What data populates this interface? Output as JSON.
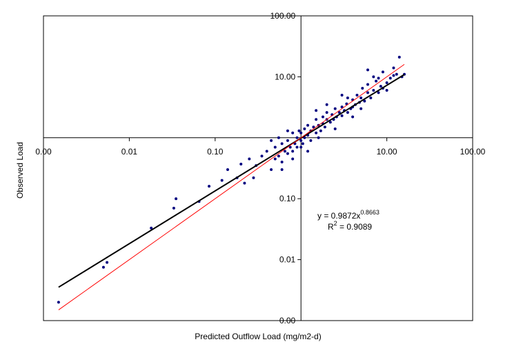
{
  "chart_data": {
    "type": "scatter",
    "x_label": "Predicted Outflow Load  (mg/m2-d)",
    "y_label": "Observed Load",
    "log_x": true,
    "log_y": true,
    "xlim": [
      0.001,
      100
    ],
    "ylim": [
      0.001,
      100
    ],
    "xticks": [
      {
        "value": 0.001,
        "label": "0.00"
      },
      {
        "value": 0.01,
        "label": "0.01"
      },
      {
        "value": 0.1,
        "label": "0.10"
      },
      {
        "value": 10,
        "label": "10.00"
      },
      {
        "value": 100,
        "label": "100.00"
      }
    ],
    "yticks": [
      {
        "value": 0.001,
        "label": "0.00"
      },
      {
        "value": 0.01,
        "label": "0.01"
      },
      {
        "value": 0.1,
        "label": "0.10"
      },
      {
        "value": 10,
        "label": "10.00"
      },
      {
        "value": 100,
        "label": "100.00"
      }
    ],
    "axis_cross": [
      1,
      1
    ],
    "annotations": {
      "equation": {
        "text": "y = 0.9872x",
        "sup": "0.8663"
      },
      "r2": {
        "text": "R",
        "sup": "2",
        "rest": " = 0.9089"
      }
    },
    "series": [
      {
        "type": "scatter",
        "color": "#000080",
        "x": [
          0.0015,
          0.005,
          0.0055,
          0.018,
          0.033,
          0.035,
          0.065,
          0.085,
          0.14,
          0.12,
          0.18,
          0.2,
          0.25,
          0.22,
          0.3,
          0.28,
          0.35,
          0.4,
          0.45,
          0.5,
          0.5,
          0.55,
          0.6,
          0.6,
          0.65,
          0.7,
          0.7,
          0.75,
          0.8,
          0.8,
          0.85,
          0.9,
          0.9,
          0.95,
          1.0,
          1.0,
          1.05,
          1.1,
          1.1,
          1.2,
          1.2,
          1.3,
          1.3,
          1.4,
          1.5,
          1.5,
          1.6,
          1.7,
          1.8,
          1.8,
          1.9,
          2.0,
          2.0,
          2.2,
          2.3,
          2.4,
          2.5,
          2.6,
          2.8,
          3.0,
          3.0,
          3.2,
          3.4,
          3.5,
          3.8,
          4.0,
          4.0,
          4.3,
          4.5,
          4.8,
          5.0,
          5.2,
          5.5,
          6.0,
          6.0,
          6.5,
          7.0,
          7.5,
          8.0,
          8.5,
          9.0,
          10.0,
          11.0,
          12.0,
          13.0,
          14.0,
          15.0,
          16.0,
          9.0,
          6.0,
          7.0,
          3.0,
          2.0,
          1.5,
          1.2,
          0.8,
          0.6,
          2.5,
          4.0,
          5.0,
          1.0,
          0.7,
          1.6,
          3.5,
          8.0,
          10.0,
          12.0,
          0.45,
          0.55
        ],
        "values": [
          0.002,
          0.0075,
          0.009,
          0.033,
          0.07,
          0.1,
          0.09,
          0.16,
          0.3,
          0.2,
          0.22,
          0.37,
          0.45,
          0.18,
          0.35,
          0.22,
          0.5,
          0.6,
          0.3,
          0.45,
          0.7,
          0.5,
          0.8,
          0.4,
          0.6,
          0.9,
          0.55,
          0.7,
          1.2,
          0.6,
          0.8,
          1.0,
          0.7,
          1.3,
          0.9,
          1.2,
          0.8,
          1.4,
          1.0,
          1.1,
          1.6,
          1.3,
          0.9,
          1.5,
          1.2,
          2.0,
          1.6,
          1.3,
          2.2,
          1.7,
          1.5,
          2.0,
          2.6,
          1.8,
          2.4,
          2.0,
          3.0,
          2.2,
          2.6,
          3.2,
          2.3,
          2.8,
          3.6,
          2.6,
          3.0,
          4.2,
          3.2,
          3.5,
          5.0,
          3.8,
          4.5,
          6.5,
          4.0,
          5.5,
          7.5,
          4.5,
          6.0,
          8.5,
          5.5,
          7.0,
          6.5,
          8.0,
          9.5,
          10.5,
          11.0,
          21.0,
          10.0,
          11.0,
          12.0,
          13.0,
          10.0,
          5.0,
          3.5,
          2.8,
          0.6,
          0.45,
          0.3,
          1.4,
          2.2,
          3.0,
          0.7,
          1.3,
          1.0,
          4.5,
          9.5,
          6.0,
          14.0,
          0.9,
          1.0
        ]
      },
      {
        "type": "line",
        "color": "#000000",
        "x": [
          0.0015,
          16
        ],
        "values": [
          0.00353,
          10.9
        ]
      },
      {
        "type": "line",
        "color": "#ff0000",
        "x": [
          0.0015,
          16
        ],
        "values": [
          0.0015,
          16
        ]
      }
    ]
  }
}
